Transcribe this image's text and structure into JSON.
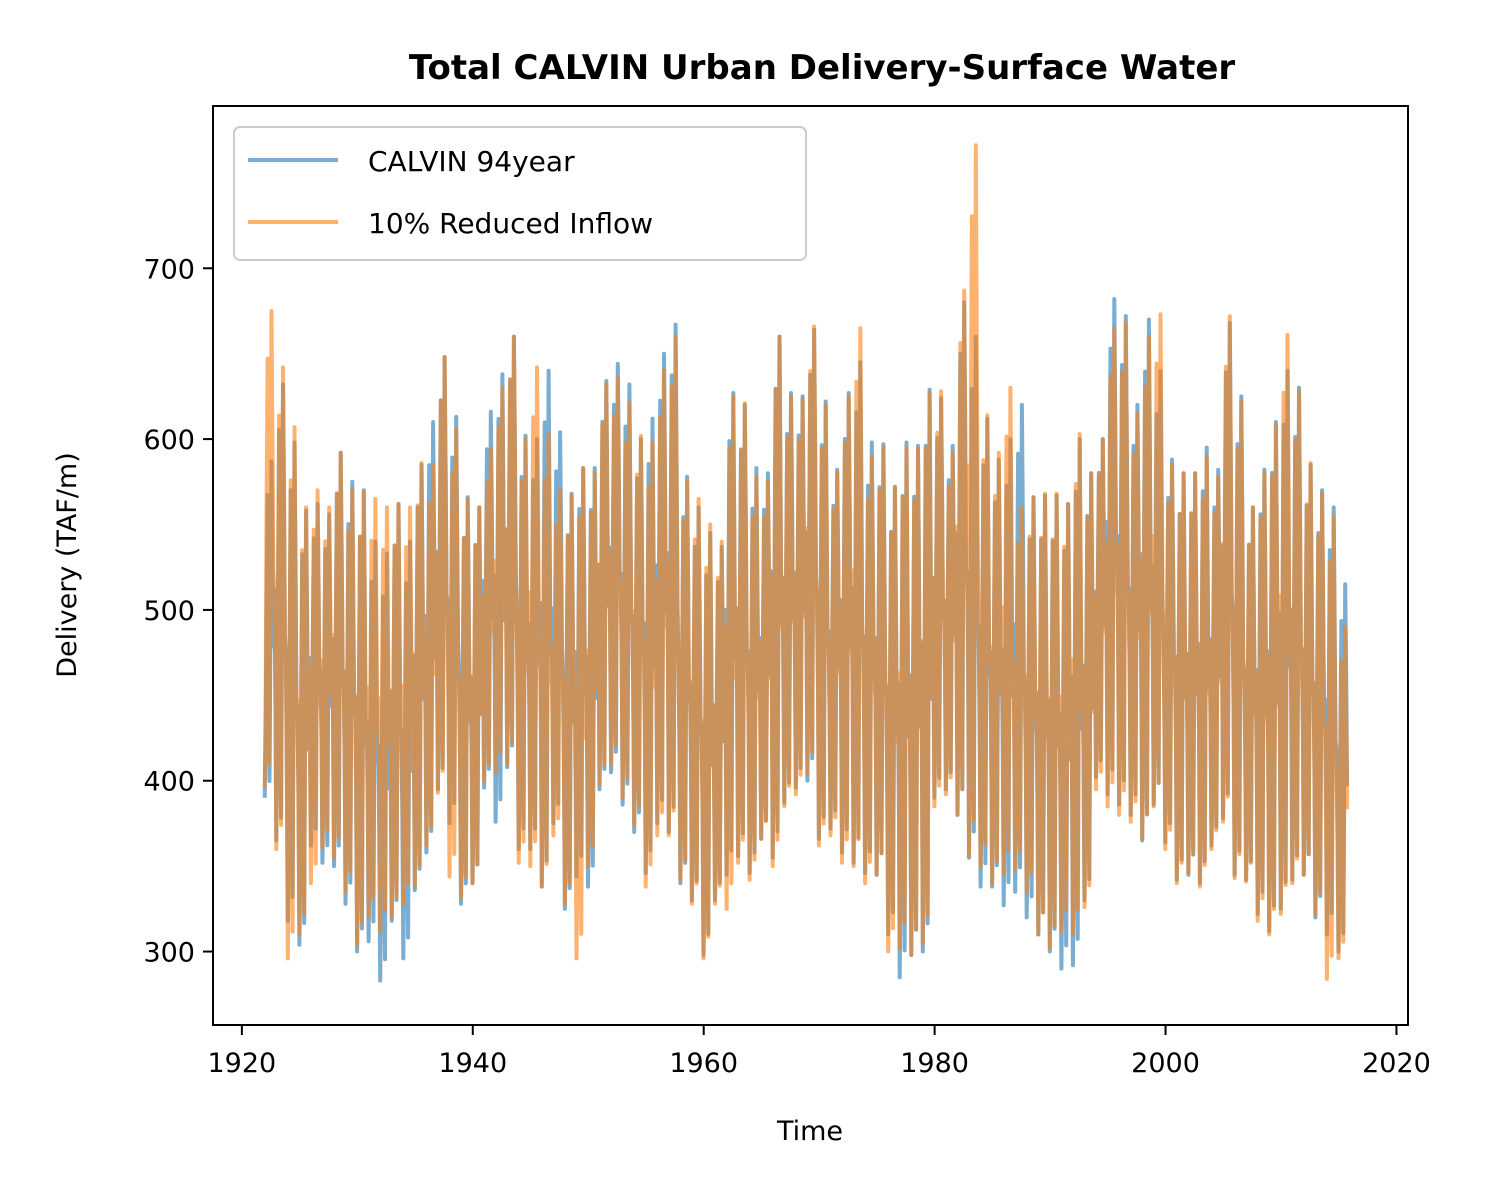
{
  "chart_data": {
    "type": "line",
    "title": "Total CALVIN Urban Delivery-Surface Water",
    "xlabel": "Time",
    "ylabel": "Delivery (TAF/m)",
    "xlim": [
      1917.5,
      2021
    ],
    "ylim": [
      257,
      795
    ],
    "xticks": [
      1920,
      1940,
      1960,
      1980,
      2000,
      2020
    ],
    "yticks": [
      300,
      400,
      500,
      600,
      700
    ],
    "grid": false,
    "legend": "upper left",
    "series_sampling": "monthly, Oct 1921 - Sep 2015; values below are per-water-year peak and trough (TAF/m)",
    "series": [
      {
        "name": "CALVIN 94year",
        "color": "#1f77b4",
        "alpha": 0.6,
        "start_year": 1922,
        "annual_peaks": [
          587,
          632,
          598,
          558,
          562,
          556,
          592,
          575,
          570,
          540,
          533,
          562,
          540,
          585,
          610,
          648,
          613,
          566,
          560,
          616,
          638,
          660,
          602,
          600,
          640,
          604,
          568,
          583,
          583,
          634,
          644,
          632,
          600,
          612,
          650,
          667,
          578,
          560,
          545,
          537,
          627,
          620,
          583,
          580,
          660,
          627,
          625,
          664,
          622,
          582,
          627,
          645,
          598,
          597,
          572,
          598,
          596,
          629,
          624,
          596,
          680,
          660,
          612,
          588,
          600,
          620,
          566,
          567,
          567,
          562,
          600,
          580,
          600,
          682,
          672,
          620,
          670,
          640,
          588,
          580,
          580,
          595,
          582,
          668,
          625,
          560,
          582,
          610,
          640,
          630,
          585,
          570,
          560,
          515
        ],
        "annual_troughs": [
          390,
          365,
          318,
          304,
          362,
          352,
          350,
          328,
          300,
          306,
          283,
          318,
          296,
          336,
          358,
          395,
          375,
          328,
          340,
          396,
          376,
          408,
          360,
          360,
          338,
          375,
          325,
          344,
          338,
          395,
          405,
          386,
          370,
          346,
          375,
          370,
          340,
          330,
          298,
          330,
          345,
          356,
          346,
          366,
          355,
          387,
          396,
          400,
          366,
          372,
          358,
          352,
          346,
          345,
          310,
          285,
          298,
          300,
          390,
          395,
          380,
          355,
          338,
          338,
          327,
          335,
          320,
          310,
          300,
          290,
          292,
          330,
          402,
          392,
          386,
          380,
          365,
          386,
          364,
          342,
          345,
          340,
          362,
          378,
          345,
          342,
          322,
          312,
          325,
          342,
          345,
          320,
          310,
          300
        ]
      },
      {
        "name": "10% Reduced Inflow",
        "color": "#ff7f0e",
        "alpha": 0.6,
        "start_year": 1922,
        "annual_peaks": [
          675,
          642,
          607,
          560,
          570,
          560,
          592,
          570,
          569,
          565,
          560,
          562,
          560,
          586,
          585,
          648,
          606,
          565,
          560,
          594,
          630,
          660,
          600,
          642,
          603,
          570,
          567,
          583,
          580,
          632,
          636,
          621,
          602,
          598,
          640,
          660,
          575,
          565,
          550,
          540,
          625,
          621,
          578,
          575,
          660,
          625,
          623,
          666,
          620,
          580,
          625,
          665,
          590,
          595,
          572,
          595,
          594,
          627,
          628,
          592,
          687,
          772,
          614,
          592,
          630,
          560,
          566,
          568,
          568,
          562,
          603,
          580,
          600,
          665,
          668,
          615,
          660,
          673,
          585,
          580,
          580,
          590,
          578,
          672,
          622,
          560,
          580,
          608,
          661,
          628,
          586,
          568,
          555,
          490
        ],
        "annual_troughs": [
          396,
          360,
          296,
          310,
          340,
          361,
          355,
          335,
          304,
          320,
          312,
          320,
          328,
          338,
          362,
          393,
          344,
          332,
          340,
          400,
          405,
          410,
          352,
          350,
          338,
          368,
          328,
          296,
          350,
          398,
          410,
          390,
          374,
          338,
          368,
          368,
          342,
          328,
          296,
          328,
          325,
          352,
          342,
          366,
          350,
          385,
          392,
          404,
          362,
          368,
          352,
          350,
          340,
          345,
          300,
          302,
          298,
          305,
          385,
          392,
          380,
          356,
          350,
          340,
          345,
          348,
          335,
          310,
          302,
          312,
          310,
          326,
          395,
          385,
          380,
          376,
          366,
          385,
          360,
          340,
          346,
          338,
          360,
          376,
          343,
          341,
          318,
          310,
          322,
          340,
          345,
          322,
          284,
          296
        ]
      }
    ]
  }
}
